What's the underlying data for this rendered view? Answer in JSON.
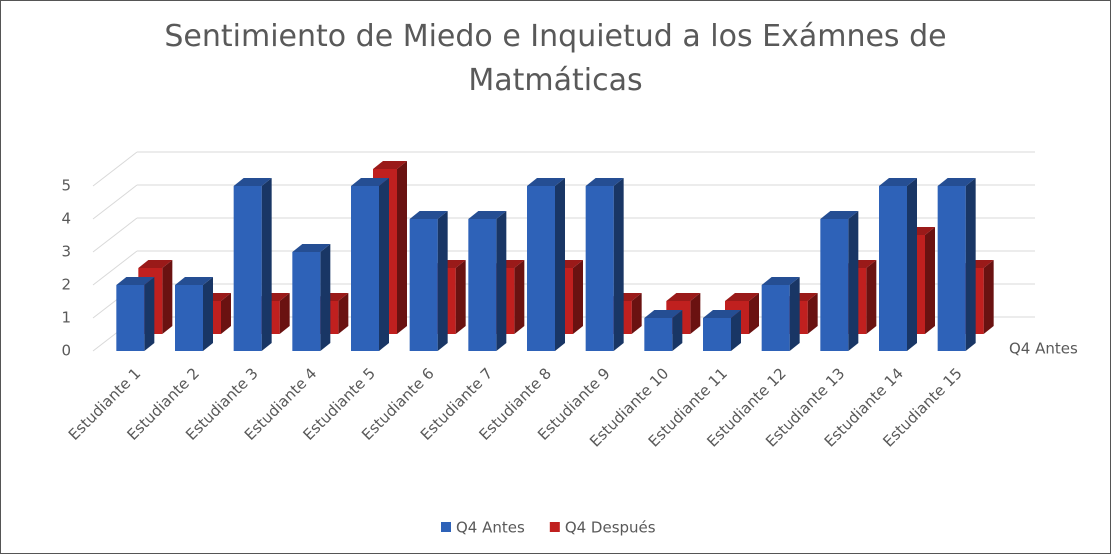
{
  "chart_data": {
    "type": "bar3d",
    "title": "Sentimiento de Miedo e Inquietud a los Exámnes de Matmáticas",
    "categories": [
      "Estudiante 1",
      "Estudiante 2",
      "Estudiante 3",
      "Estudiante 4",
      "Estudiante 5",
      "Estudiante 6",
      "Estudiante 7",
      "Estudiante 8",
      "Estudiante 9",
      "Estudiante 10",
      "Estudiante 11",
      "Estudiante 12",
      "Estudiante 13",
      "Estudiante 14",
      "Estudiante 15"
    ],
    "series": [
      {
        "name": "Q4 Antes",
        "color": "#2e62b8",
        "values": [
          2,
          2,
          5,
          3,
          5,
          4,
          4,
          5,
          5,
          1,
          1,
          2,
          4,
          5,
          5
        ]
      },
      {
        "name": "Q4 Después",
        "color": "#c0201f",
        "values": [
          2,
          1,
          1,
          1,
          5,
          2,
          2,
          2,
          1,
          1,
          1,
          1,
          2,
          3,
          2
        ]
      }
    ],
    "ylim": [
      0,
      5
    ],
    "yticks": [
      0,
      1,
      2,
      3,
      4,
      5
    ],
    "grid": true,
    "legend": "bottom"
  }
}
